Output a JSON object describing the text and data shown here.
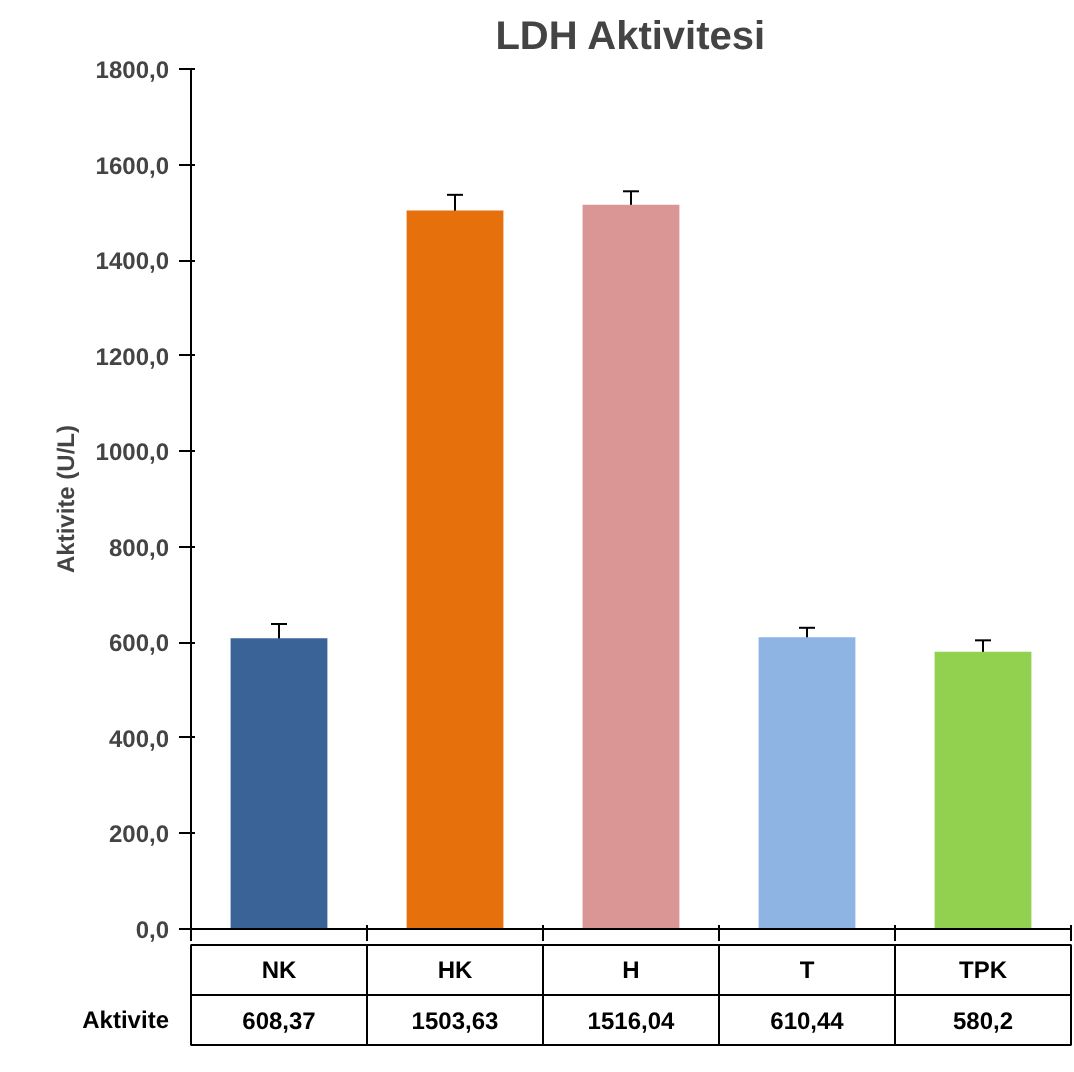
{
  "chart_data": {
    "type": "bar",
    "title": "LDH Aktivitesi",
    "ylabel": "Aktivite (U/L)",
    "categories": [
      "NK",
      "HK",
      "H",
      "T",
      "TPK"
    ],
    "values": [
      608.37,
      1503.63,
      1516.04,
      610.44,
      580.2
    ],
    "colors": [
      "#3a6497",
      "#e5700c",
      "#d99694",
      "#8eb4e3",
      "#92d050"
    ],
    "errors": [
      30,
      33,
      28,
      20,
      24
    ],
    "value_labels": [
      "608,37",
      "1503,63",
      "1516,04",
      "610,44",
      "580,2"
    ],
    "annotations": [
      "Aktivite"
    ],
    "ylim": [
      0,
      1800
    ],
    "yticks": [
      {
        "value": 0,
        "label": "0,0"
      },
      {
        "value": 200,
        "label": "200,0"
      },
      {
        "value": 400,
        "label": "400,0"
      },
      {
        "value": 600,
        "label": "600,0"
      },
      {
        "value": 800,
        "label": "800,0"
      },
      {
        "value": 1000,
        "label": "1000,0"
      },
      {
        "value": 1200,
        "label": "1200,0"
      },
      {
        "value": 1400,
        "label": "1400,0"
      },
      {
        "value": 1600,
        "label": "1600,0"
      },
      {
        "value": 1800,
        "label": "1800,0"
      }
    ],
    "grid": false
  }
}
